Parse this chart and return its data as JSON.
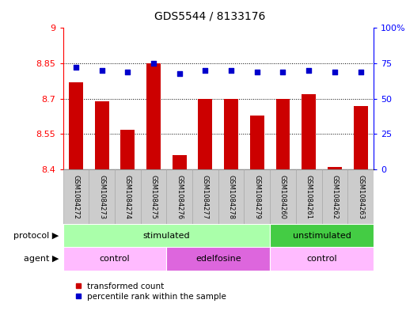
{
  "title": "GDS5544 / 8133176",
  "samples": [
    "GSM1084272",
    "GSM1084273",
    "GSM1084274",
    "GSM1084275",
    "GSM1084276",
    "GSM1084277",
    "GSM1084278",
    "GSM1084279",
    "GSM1084260",
    "GSM1084261",
    "GSM1084262",
    "GSM1084263"
  ],
  "bar_values": [
    8.77,
    8.69,
    8.57,
    8.85,
    8.46,
    8.7,
    8.7,
    8.63,
    8.7,
    8.72,
    8.41,
    8.67
  ],
  "blue_values": [
    72,
    70,
    69,
    75,
    68,
    70,
    70,
    69,
    69,
    70,
    69,
    69
  ],
  "ymin": 8.4,
  "ymax": 9.0,
  "yticks_left": [
    8.4,
    8.55,
    8.7,
    8.85,
    9.0
  ],
  "ytick_labels_left": [
    "8.4",
    "8.55",
    "8.7",
    "8.85",
    "9"
  ],
  "right_yticks": [
    0,
    25,
    50,
    75,
    100
  ],
  "right_ytick_labels": [
    "0",
    "25",
    "50",
    "75",
    "100%"
  ],
  "hlines": [
    8.55,
    8.7,
    8.85
  ],
  "bar_color": "#cc0000",
  "blue_color": "#0000cc",
  "bar_width": 0.55,
  "protocol_groups": [
    {
      "label": "stimulated",
      "start": 0,
      "end": 7,
      "color": "#aaffaa"
    },
    {
      "label": "unstimulated",
      "start": 8,
      "end": 11,
      "color": "#44cc44"
    }
  ],
  "agent_groups": [
    {
      "label": "control",
      "start": 0,
      "end": 3,
      "color": "#ffbbff"
    },
    {
      "label": "edelfosine",
      "start": 4,
      "end": 7,
      "color": "#dd66dd"
    },
    {
      "label": "control",
      "start": 8,
      "end": 11,
      "color": "#ffbbff"
    }
  ],
  "legend_red_label": "transformed count",
  "legend_blue_label": "percentile rank within the sample",
  "protocol_label": "protocol",
  "agent_label": "agent",
  "gray_box_color": "#cccccc",
  "gray_box_edge": "#aaaaaa"
}
